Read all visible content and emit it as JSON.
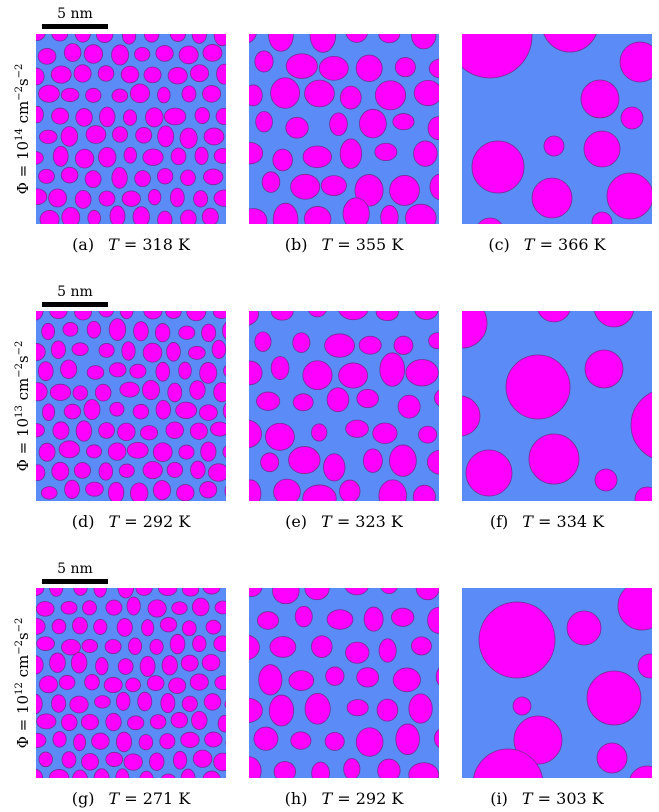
{
  "colors": {
    "matrix": "#5b8bf7",
    "particle": "#ff00ff",
    "particle_edge": "#7a2a9a"
  },
  "rows": [
    {
      "scale_label": "5 nm",
      "ylabel": {
        "prefix": "Φ = 10",
        "exp1": "14",
        "unit": " cm",
        "exp2": "−2",
        "unit2": "s",
        "exp3": "−2"
      },
      "panels": [
        {
          "letter": "(a)",
          "T_symbol": "T",
          "T_value": "= 318 K"
        },
        {
          "letter": "(b)",
          "T_symbol": "T",
          "T_value": "= 355 K"
        },
        {
          "letter": "(c)",
          "T_symbol": "T",
          "T_value": "= 366 K"
        }
      ]
    },
    {
      "scale_label": "5 nm",
      "ylabel": {
        "prefix": "Φ = 10",
        "exp1": "13",
        "unit": " cm",
        "exp2": "−2",
        "unit2": "s",
        "exp3": "−2"
      },
      "panels": [
        {
          "letter": "(d)",
          "T_symbol": "T",
          "T_value": "= 292 K"
        },
        {
          "letter": "(e)",
          "T_symbol": "T",
          "T_value": "= 323 K"
        },
        {
          "letter": "(f)",
          "T_symbol": "T",
          "T_value": "= 334 K"
        }
      ]
    },
    {
      "scale_label": "5 nm",
      "ylabel": {
        "prefix": "Φ = 10",
        "exp1": "12",
        "unit": " cm",
        "exp2": "−2",
        "unit2": "s",
        "exp3": "−2"
      },
      "panels": [
        {
          "letter": "(g)",
          "T_symbol": "T",
          "T_value": "= 271 K"
        },
        {
          "letter": "(h)",
          "T_symbol": "T",
          "T_value": "= 292 K"
        },
        {
          "letter": "(i)",
          "T_symbol": "T",
          "T_value": "= 303 K"
        }
      ]
    }
  ]
}
